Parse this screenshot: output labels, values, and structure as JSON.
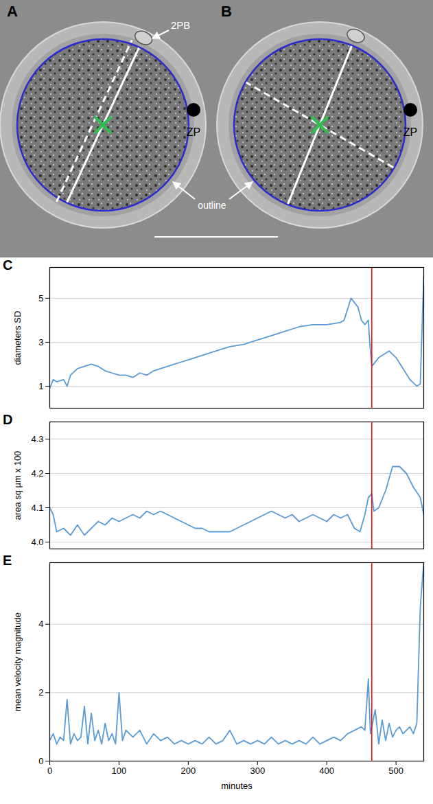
{
  "micrographs": {
    "panels": [
      "A",
      "B"
    ],
    "polar_body_label": "2PB",
    "zona_label": "ZP",
    "outline_label": "outline"
  },
  "chart_data": [
    {
      "letter": "C",
      "type": "line",
      "y_label": "diameters SD",
      "color": "#5b9bd5",
      "grid": true,
      "tick_labels": "y",
      "xlim": [
        0,
        540
      ],
      "ylim": [
        0,
        6.4
      ],
      "yticks": [
        1,
        3,
        5
      ],
      "annotations": [
        {
          "x": 465,
          "color": "red"
        }
      ],
      "x": [
        0,
        5,
        10,
        20,
        25,
        30,
        40,
        50,
        60,
        70,
        80,
        90,
        100,
        110,
        120,
        130,
        140,
        150,
        160,
        170,
        180,
        190,
        200,
        220,
        240,
        260,
        280,
        300,
        320,
        340,
        360,
        380,
        400,
        420,
        425,
        435,
        445,
        450,
        455,
        460,
        462,
        465,
        475,
        490,
        500,
        510,
        520,
        530,
        535,
        540
      ],
      "values": [
        0.9,
        1.3,
        1.2,
        1.3,
        1.0,
        1.5,
        1.8,
        1.9,
        2.0,
        1.9,
        1.7,
        1.6,
        1.5,
        1.5,
        1.4,
        1.6,
        1.5,
        1.7,
        1.8,
        1.9,
        2.0,
        2.1,
        2.2,
        2.4,
        2.6,
        2.8,
        2.9,
        3.1,
        3.3,
        3.5,
        3.7,
        3.8,
        3.8,
        3.9,
        4.0,
        5.0,
        4.6,
        4.0,
        3.8,
        4.0,
        3.0,
        1.9,
        2.3,
        2.6,
        2.3,
        1.8,
        1.3,
        1.0,
        1.1,
        6.0
      ]
    },
    {
      "letter": "D",
      "type": "line",
      "y_label": "area sq µm x 100",
      "color": "#5b9bd5",
      "grid": true,
      "tick_labels": "y",
      "xlim": [
        0,
        540
      ],
      "ylim": [
        3.98,
        4.35
      ],
      "yticks": [
        {
          "value": 4.0,
          "label": "4.0"
        },
        4.1,
        4.2,
        4.3
      ],
      "annotations": [
        {
          "x": 465,
          "color": "red"
        }
      ],
      "x": [
        0,
        5,
        10,
        20,
        30,
        40,
        50,
        60,
        70,
        80,
        90,
        100,
        110,
        120,
        130,
        140,
        150,
        160,
        170,
        180,
        190,
        200,
        210,
        220,
        230,
        240,
        250,
        260,
        270,
        280,
        290,
        300,
        310,
        320,
        330,
        340,
        350,
        360,
        370,
        380,
        390,
        400,
        410,
        420,
        430,
        440,
        448,
        455,
        460,
        465,
        468,
        475,
        485,
        495,
        505,
        515,
        525,
        535,
        540
      ],
      "values": [
        4.1,
        4.08,
        4.03,
        4.04,
        4.02,
        4.05,
        4.02,
        4.04,
        4.06,
        4.05,
        4.07,
        4.06,
        4.07,
        4.08,
        4.07,
        4.09,
        4.08,
        4.09,
        4.08,
        4.07,
        4.06,
        4.05,
        4.04,
        4.04,
        4.03,
        4.03,
        4.03,
        4.03,
        4.04,
        4.05,
        4.06,
        4.07,
        4.08,
        4.09,
        4.08,
        4.07,
        4.08,
        4.06,
        4.07,
        4.08,
        4.07,
        4.06,
        4.08,
        4.07,
        4.08,
        4.04,
        4.03,
        4.08,
        4.13,
        4.14,
        4.09,
        4.1,
        4.15,
        4.22,
        4.22,
        4.2,
        4.16,
        4.13,
        4.08
      ]
    },
    {
      "letter": "E",
      "type": "line",
      "y_label": "mean velocity magnitude",
      "x_label": "minutes",
      "color": "#5b9bd5",
      "grid": true,
      "tick_labels": true,
      "xlim": [
        0,
        540
      ],
      "xticks": [
        0,
        100,
        200,
        300,
        400,
        500
      ],
      "ylim": [
        0,
        5.8
      ],
      "yticks": [
        0,
        2,
        4
      ],
      "annotations": [
        {
          "x": 465,
          "color": "red"
        }
      ],
      "x": [
        0,
        5,
        10,
        15,
        20,
        25,
        30,
        35,
        40,
        45,
        50,
        55,
        60,
        65,
        70,
        75,
        80,
        85,
        90,
        95,
        100,
        105,
        110,
        120,
        130,
        140,
        150,
        160,
        170,
        180,
        190,
        200,
        210,
        220,
        230,
        240,
        250,
        260,
        270,
        280,
        290,
        300,
        310,
        320,
        330,
        340,
        350,
        360,
        370,
        380,
        390,
        400,
        410,
        420,
        430,
        440,
        450,
        455,
        460,
        463,
        470,
        475,
        480,
        485,
        490,
        495,
        500,
        505,
        510,
        515,
        520,
        525,
        530,
        535,
        540
      ],
      "values": [
        0.6,
        0.8,
        0.5,
        0.7,
        0.6,
        1.8,
        0.5,
        0.8,
        0.6,
        0.7,
        1.6,
        0.5,
        1.4,
        0.6,
        0.9,
        0.5,
        1.1,
        0.6,
        0.8,
        0.5,
        2.0,
        0.6,
        0.9,
        0.7,
        0.9,
        0.5,
        0.8,
        0.6,
        0.7,
        0.5,
        0.6,
        0.5,
        0.6,
        0.5,
        0.7,
        0.5,
        0.6,
        0.9,
        0.5,
        0.6,
        0.5,
        0.6,
        0.5,
        0.7,
        0.5,
        0.6,
        0.5,
        0.6,
        0.5,
        0.7,
        0.5,
        0.6,
        0.7,
        0.6,
        0.8,
        0.9,
        1.0,
        0.9,
        2.4,
        0.8,
        1.5,
        0.5,
        1.2,
        0.6,
        1.1,
        0.7,
        0.9,
        1.0,
        0.8,
        0.9,
        1.0,
        0.8,
        1.1,
        4.5,
        5.8
      ]
    }
  ]
}
